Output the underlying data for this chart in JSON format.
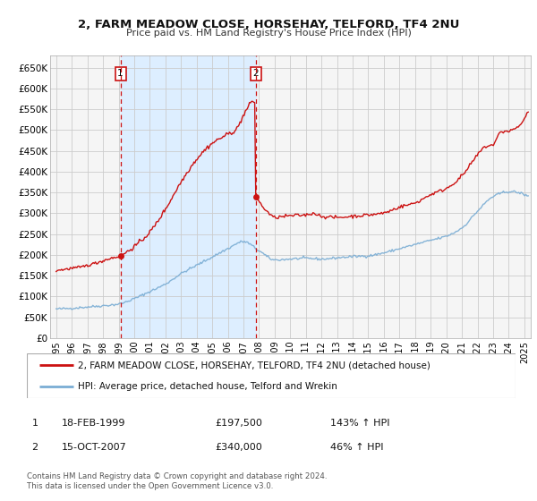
{
  "title": "2, FARM MEADOW CLOSE, HORSEHAY, TELFORD, TF4 2NU",
  "subtitle": "Price paid vs. HM Land Registry's House Price Index (HPI)",
  "legend_line1": "2, FARM MEADOW CLOSE, HORSEHAY, TELFORD, TF4 2NU (detached house)",
  "legend_line2": "HPI: Average price, detached house, Telford and Wrekin",
  "footer1": "Contains HM Land Registry data © Crown copyright and database right 2024.",
  "footer2": "This data is licensed under the Open Government Licence v3.0.",
  "annotation1_label": "1",
  "annotation1_date": "18-FEB-1999",
  "annotation1_price": "£197,500",
  "annotation1_hpi": "143% ↑ HPI",
  "annotation2_label": "2",
  "annotation2_date": "15-OCT-2007",
  "annotation2_price": "£340,000",
  "annotation2_hpi": "46% ↑ HPI",
  "sale1_x": 1999.12,
  "sale1_y": 197500,
  "sale2_x": 2007.79,
  "sale2_y": 340000,
  "vline1_x": 1999.12,
  "vline2_x": 2007.79,
  "shade_xmin": 1999.12,
  "shade_xmax": 2007.79,
  "hpi_color": "#7aadd4",
  "price_color": "#cc1111",
  "shade_color": "#ddeeff",
  "grid_color": "#cccccc",
  "background_color": "#f5f5f5",
  "ylim": [
    0,
    680000
  ],
  "xlim": [
    1994.6,
    2025.4
  ],
  "yticks": [
    0,
    50000,
    100000,
    150000,
    200000,
    250000,
    300000,
    350000,
    400000,
    450000,
    500000,
    550000,
    600000,
    650000
  ],
  "ytick_labels": [
    "£0",
    "£50K",
    "£100K",
    "£150K",
    "£200K",
    "£250K",
    "£300K",
    "£350K",
    "£400K",
    "£450K",
    "£500K",
    "£550K",
    "£600K",
    "£650K"
  ],
  "xticks": [
    1995,
    1996,
    1997,
    1998,
    1999,
    2000,
    2001,
    2002,
    2003,
    2004,
    2005,
    2006,
    2007,
    2008,
    2009,
    2010,
    2011,
    2012,
    2013,
    2014,
    2015,
    2016,
    2017,
    2018,
    2019,
    2020,
    2021,
    2022,
    2023,
    2024,
    2025
  ]
}
